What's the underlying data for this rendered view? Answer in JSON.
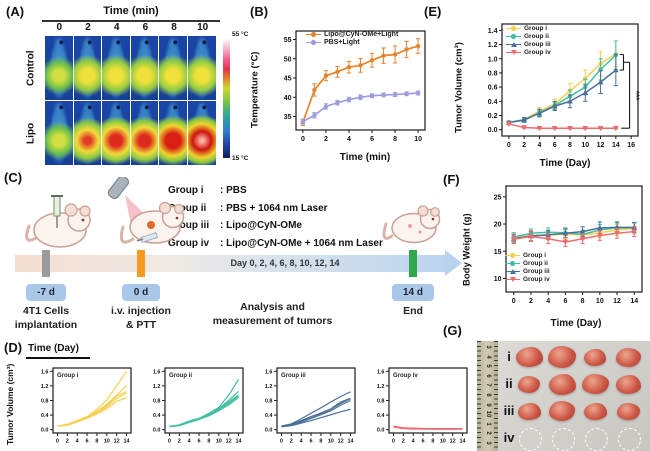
{
  "labels": {
    "a": "(A)",
    "b": "(B)",
    "c": "(C)",
    "d": "(D)",
    "e": "(E)",
    "f": "(F)",
    "g": "(G)"
  },
  "colors": {
    "group_i": "#F5D052",
    "group_ii": "#43BFA3",
    "group_iii": "#4C6F99",
    "group_iv": "#EC6D6F",
    "lipo_light": "#E8822C",
    "pbs_light": "#9C9CDE",
    "marker_implant": "#9b9b9b",
    "marker_injection": "#f59a23",
    "marker_end": "#2fa84f",
    "badge_bg": "#a9c8e9"
  },
  "panelA": {
    "title": "Time (min)",
    "times": [
      "0",
      "2",
      "4",
      "6",
      "8",
      "10"
    ],
    "rows": [
      "Control",
      "Lipo"
    ],
    "colorbar": {
      "top": "55 °C",
      "bottom": "15 °C"
    },
    "heat": {
      "m1": [
        [
          "#cfe040",
          14
        ],
        [
          "#6fc04c",
          30
        ],
        [
          "rgba(30,90,170,0)",
          46
        ]
      ],
      "m2": [
        [
          "#f0e03a",
          16
        ],
        [
          "#93cc42",
          34
        ],
        [
          "rgba(30,90,170,0)",
          50
        ]
      ],
      "r1": [
        [
          "#e23b26",
          8
        ],
        [
          "#f0dc3a",
          26
        ],
        [
          "#8cc944",
          42
        ],
        [
          "rgba(30,90,170,0)",
          56
        ]
      ],
      "r2": [
        [
          "#de2a1e",
          14
        ],
        [
          "#f0dc3a",
          32
        ],
        [
          "#8cc944",
          46
        ],
        [
          "rgba(30,90,170,0)",
          58
        ]
      ],
      "r3": [
        [
          "#d91e14",
          18
        ],
        [
          "#eed42e",
          36
        ],
        [
          "#88c641",
          48
        ],
        [
          "rgba(30,90,170,0)",
          60
        ]
      ],
      "r4": [
        [
          "#ffb09a",
          4
        ],
        [
          "#cd1410",
          22
        ],
        [
          "#eed42e",
          40
        ],
        [
          "#88c641",
          52
        ],
        [
          "rgba(30,90,170,0)",
          62
        ]
      ]
    },
    "grid": [
      [
        "m1",
        "m2",
        "m2",
        "m2",
        "m2",
        "m2"
      ],
      [
        "m1",
        "r1",
        "r2",
        "r2",
        "r3",
        "r4"
      ]
    ]
  },
  "panelB": {
    "ylabel": "Temperature (°C)",
    "xlabel": "Time (min)"
  },
  "panelC": {
    "groups": [
      {
        "name": "Group i",
        "desc": ": PBS"
      },
      {
        "name": "Group ii",
        "desc": ": PBS + 1064 nm Laser"
      },
      {
        "name": "Group iii",
        "desc": ": Lipo@CyN-OMe"
      },
      {
        "name": "Group iv",
        "desc": ": Lipo@CyN-OMe + 1064 nm Laser"
      }
    ],
    "day_text": "Day 0, 2, 4, 6, 8, 10, 12, 14",
    "badges": [
      {
        "text": "-7 d"
      },
      {
        "text": "0 d"
      },
      {
        "text": "14 d"
      }
    ],
    "captions": [
      {
        "line1": "4T1 Cells",
        "line2": "implantation"
      },
      {
        "line1": "i.v. injection",
        "line2": "& PTT"
      },
      {
        "line1": "Analysis and",
        "line2": "measurement of tumors"
      },
      {
        "line1": "End",
        "line2": ""
      }
    ]
  },
  "panelD": {
    "header": "Time (Day)",
    "ylabel": "Tumor Volume (cm³)"
  },
  "panelE": {
    "ylabel": "Tumor Volume (cm³)",
    "xlabel": "Time (Day)",
    "significance": "***"
  },
  "panelF": {
    "ylabel": "Body Weight (g)",
    "xlabel": "Time (Day)"
  },
  "panelG": {
    "ruler_numbers": [
      "3",
      "4",
      "5",
      "6",
      "7",
      "8",
      "9",
      "10",
      "1",
      "2",
      "3"
    ],
    "rows": [
      {
        "label": "i",
        "type": "tumor",
        "sizes": [
          [
            27,
            20
          ],
          [
            28,
            22
          ],
          [
            22,
            17
          ],
          [
            25,
            19
          ]
        ]
      },
      {
        "label": "ii",
        "type": "tumor",
        "sizes": [
          [
            22,
            17
          ],
          [
            27,
            21
          ],
          [
            27,
            20
          ],
          [
            25,
            19
          ]
        ]
      },
      {
        "label": "iii",
        "type": "tumor",
        "sizes": [
          [
            23,
            17
          ],
          [
            26,
            20
          ],
          [
            23,
            17
          ],
          [
            23,
            17
          ]
        ]
      },
      {
        "label": "iv",
        "type": "empty",
        "sizes": [
          [
            21,
            21
          ],
          [
            21,
            21
          ],
          [
            21,
            21
          ],
          [
            21,
            21
          ]
        ]
      }
    ]
  },
  "chart_data": [
    {
      "id": "b",
      "type": "line",
      "title": "",
      "xlabel": "Time (min)",
      "ylabel": "Temperature (°C)",
      "x": [
        0,
        1,
        2,
        3,
        4,
        5,
        6,
        7,
        8,
        9,
        10
      ],
      "xlim": [
        -0.6,
        10.6
      ],
      "ylim": [
        31.5,
        57.2
      ],
      "xticks": [
        0,
        2,
        4,
        6,
        8,
        10
      ],
      "yticks": [
        35,
        40,
        45,
        50,
        55
      ],
      "legend_position": "top-left",
      "series": [
        {
          "name": "Lipo@CyN-OMe+Light",
          "color": "#E8822C",
          "marker": "circle",
          "values": [
            33.5,
            41.9,
            45.6,
            46.6,
            47.8,
            48.3,
            49.6,
            50.8,
            51.1,
            52.4,
            53.3
          ],
          "err": [
            0.8,
            1.6,
            1.3,
            1.4,
            1.5,
            1.8,
            1.8,
            2.0,
            2.2,
            2.1,
            1.9
          ]
        },
        {
          "name": "PBS+Light",
          "color": "#9C9CDE",
          "marker": "circle",
          "values": [
            33.7,
            35.3,
            37.6,
            38.6,
            39.4,
            40.0,
            40.4,
            40.6,
            40.7,
            40.9,
            41.1
          ],
          "err": [
            0.6,
            0.7,
            0.7,
            0.6,
            0.6,
            0.6,
            0.5,
            0.5,
            0.5,
            0.5,
            0.5
          ]
        }
      ]
    },
    {
      "id": "e",
      "type": "line",
      "title": "",
      "xlabel": "Time (Day)",
      "ylabel": "Tumor Volume (cm³)",
      "x": [
        0,
        2,
        4,
        6,
        8,
        10,
        12,
        14
      ],
      "xlim": [
        -0.9,
        16.9
      ],
      "ylim": [
        -0.09,
        1.49
      ],
      "xticks": [
        0,
        2,
        4,
        6,
        8,
        10,
        12,
        14,
        16
      ],
      "yticks": [
        0.0,
        0.2,
        0.4,
        0.6,
        0.8,
        1.0,
        1.2,
        1.4
      ],
      "ydec": 1,
      "legend_position": "top-left",
      "series": [
        {
          "name": "Group i",
          "color": "#F5D052",
          "marker": "circle",
          "values": [
            0.1,
            0.14,
            0.26,
            0.36,
            0.55,
            0.72,
            0.93,
            1.07
          ],
          "err": [
            0.02,
            0.03,
            0.05,
            0.07,
            0.1,
            0.12,
            0.17,
            0.18
          ]
        },
        {
          "name": "Group ii",
          "color": "#43BFA3",
          "marker": "circle",
          "values": [
            0.1,
            0.13,
            0.24,
            0.34,
            0.47,
            0.6,
            0.85,
            1.05
          ],
          "err": [
            0.02,
            0.03,
            0.05,
            0.06,
            0.09,
            0.11,
            0.15,
            0.2
          ]
        },
        {
          "name": "Group iii",
          "color": "#4C6F99",
          "marker": "tri-up",
          "values": [
            0.1,
            0.14,
            0.23,
            0.33,
            0.4,
            0.52,
            0.67,
            0.84
          ],
          "err": [
            0.02,
            0.03,
            0.05,
            0.06,
            0.09,
            0.12,
            0.16,
            0.22
          ]
        },
        {
          "name": "Group iv",
          "color": "#EC6D6F",
          "marker": "tri-down",
          "values": [
            0.08,
            0.03,
            0.02,
            0.02,
            0.02,
            0.02,
            0.02,
            0.02
          ],
          "err": [
            0.01,
            0.01,
            0.01,
            0.01,
            0.01,
            0.01,
            0.01,
            0.01
          ]
        }
      ],
      "annotation": {
        "label": "***",
        "text_x": 16.3,
        "text_y": 0.48,
        "lines": [
          [
            14.5,
            1.06,
            15.0,
            1.06
          ],
          [
            14.5,
            0.84,
            15.0,
            0.84
          ],
          [
            15.0,
            1.06,
            15.0,
            0.84
          ],
          [
            15.0,
            0.95,
            15.8,
            0.95
          ],
          [
            15.8,
            0.95,
            15.8,
            0.02
          ],
          [
            15.8,
            0.02,
            14.7,
            0.02
          ]
        ]
      }
    },
    {
      "id": "f",
      "type": "line",
      "title": "",
      "xlabel": "Time (Day)",
      "ylabel": "Body Weight (g)",
      "x": [
        0,
        2,
        4,
        6,
        8,
        10,
        12,
        14
      ],
      "xlim": [
        -0.9,
        14.9
      ],
      "ylim": [
        7.5,
        27
      ],
      "xticks": [
        0,
        2,
        4,
        6,
        8,
        10,
        12,
        14
      ],
      "yticks": [
        10,
        15,
        20,
        25
      ],
      "legend_position": "bottom-left",
      "series": [
        {
          "name": "Group i",
          "color": "#F5D052",
          "marker": "circle",
          "values": [
            17.5,
            17.9,
            18.0,
            18.1,
            18.0,
            18.4,
            18.9,
            19.2
          ],
          "err": [
            0.9,
            0.9,
            0.9,
            0.9,
            0.8,
            0.9,
            1.0,
            1.0
          ]
        },
        {
          "name": "Group ii",
          "color": "#43BFA3",
          "marker": "circle",
          "values": [
            17.6,
            18.3,
            18.5,
            18.4,
            18.1,
            18.9,
            19.3,
            19.3
          ],
          "err": [
            0.8,
            0.8,
            0.8,
            0.9,
            0.8,
            1.0,
            0.9,
            0.9
          ]
        },
        {
          "name": "Group iii",
          "color": "#4C6F99",
          "marker": "tri-up",
          "values": [
            17.3,
            17.8,
            18.0,
            18.3,
            18.6,
            19.3,
            19.4,
            19.4
          ],
          "err": [
            0.8,
            0.9,
            0.8,
            0.8,
            0.9,
            1.1,
            1.0,
            0.9
          ]
        },
        {
          "name": "Group iv",
          "color": "#EC6D6F",
          "marker": "tri-down",
          "values": [
            17.2,
            17.7,
            17.3,
            16.7,
            17.3,
            17.9,
            18.3,
            18.6
          ],
          "err": [
            0.8,
            0.9,
            0.9,
            0.8,
            0.9,
            0.9,
            0.9,
            0.9
          ]
        }
      ]
    },
    {
      "id": "d1",
      "type": "line",
      "title": "Group i",
      "xlabel": "Time (Day)",
      "ylabel": "Tumor Volume (cm³)",
      "x": [
        0,
        2,
        4,
        6,
        8,
        10,
        12,
        14
      ],
      "xlim": [
        -0.9,
        14.9
      ],
      "ylim": [
        -0.09,
        1.69
      ],
      "xticks": [
        0,
        2,
        4,
        6,
        8,
        10,
        12,
        14
      ],
      "yticks": [
        0.0,
        0.4,
        0.8,
        1.2,
        1.6
      ],
      "ydec": 1,
      "color": "#F5D052",
      "series": [
        {
          "values": [
            0.1,
            0.15,
            0.25,
            0.36,
            0.55,
            0.82,
            1.2,
            1.6
          ]
        },
        {
          "values": [
            0.1,
            0.14,
            0.24,
            0.35,
            0.5,
            0.7,
            0.95,
            1.21
          ]
        },
        {
          "values": [
            0.1,
            0.13,
            0.23,
            0.34,
            0.48,
            0.66,
            0.92,
            1.05
          ]
        },
        {
          "values": [
            0.1,
            0.13,
            0.22,
            0.33,
            0.46,
            0.62,
            0.86,
            1.0
          ]
        },
        {
          "values": [
            0.1,
            0.12,
            0.21,
            0.31,
            0.43,
            0.57,
            0.78,
            0.87
          ]
        }
      ]
    },
    {
      "id": "d2",
      "type": "line",
      "title": "Group ii",
      "xlabel": "Time (Day)",
      "ylabel": "Tumor Volume (cm³)",
      "x": [
        0,
        2,
        4,
        6,
        8,
        10,
        12,
        14
      ],
      "xlim": [
        -0.9,
        14.9
      ],
      "ylim": [
        -0.09,
        1.69
      ],
      "xticks": [
        0,
        2,
        4,
        6,
        8,
        10,
        12,
        14
      ],
      "yticks": [
        0.0,
        0.4,
        0.8,
        1.2,
        1.6
      ],
      "ydec": 1,
      "color": "#43BFA3",
      "series": [
        {
          "values": [
            0.09,
            0.13,
            0.24,
            0.31,
            0.45,
            0.61,
            0.95,
            1.38
          ]
        },
        {
          "values": [
            0.09,
            0.13,
            0.23,
            0.3,
            0.43,
            0.58,
            0.8,
            1.05
          ]
        },
        {
          "values": [
            0.09,
            0.12,
            0.22,
            0.3,
            0.41,
            0.56,
            0.76,
            0.95
          ]
        },
        {
          "values": [
            0.09,
            0.12,
            0.21,
            0.29,
            0.4,
            0.55,
            0.72,
            0.92
          ]
        },
        {
          "values": [
            0.08,
            0.11,
            0.2,
            0.28,
            0.38,
            0.52,
            0.68,
            0.88
          ]
        }
      ]
    },
    {
      "id": "d3",
      "type": "line",
      "title": "Group iii",
      "xlabel": "Time (Day)",
      "ylabel": "Tumor Volume (cm³)",
      "x": [
        0,
        2,
        4,
        6,
        8,
        10,
        12,
        14
      ],
      "xlim": [
        -0.9,
        14.9
      ],
      "ylim": [
        -0.09,
        1.69
      ],
      "xticks": [
        0,
        2,
        4,
        6,
        8,
        10,
        12,
        14
      ],
      "yticks": [
        0.0,
        0.4,
        0.8,
        1.2,
        1.6
      ],
      "ydec": 1,
      "color": "#4C6F99",
      "series": [
        {
          "values": [
            0.1,
            0.16,
            0.3,
            0.45,
            0.6,
            0.76,
            0.91,
            1.04
          ]
        },
        {
          "values": [
            0.1,
            0.14,
            0.25,
            0.36,
            0.46,
            0.57,
            0.76,
            0.86
          ]
        },
        {
          "values": [
            0.09,
            0.13,
            0.23,
            0.32,
            0.43,
            0.56,
            0.72,
            0.85
          ]
        },
        {
          "values": [
            0.09,
            0.12,
            0.21,
            0.31,
            0.41,
            0.52,
            0.67,
            0.8
          ]
        },
        {
          "values": [
            0.08,
            0.11,
            0.18,
            0.25,
            0.33,
            0.41,
            0.49,
            0.56
          ]
        }
      ]
    },
    {
      "id": "d4",
      "type": "line",
      "title": "Group iv",
      "xlabel": "Time (Day)",
      "ylabel": "Tumor Volume (cm³)",
      "x": [
        0,
        2,
        4,
        6,
        8,
        10,
        12,
        14
      ],
      "xlim": [
        -0.9,
        14.9
      ],
      "ylim": [
        -0.09,
        1.69
      ],
      "xticks": [
        0,
        2,
        4,
        6,
        8,
        10,
        12,
        14
      ],
      "yticks": [
        0.0,
        0.4,
        0.8,
        1.2,
        1.6
      ],
      "ydec": 1,
      "color": "#EC6D6F",
      "series": [
        {
          "values": [
            0.1,
            0.05,
            0.04,
            0.03,
            0.03,
            0.03,
            0.03,
            0.03
          ]
        },
        {
          "values": [
            0.09,
            0.05,
            0.04,
            0.03,
            0.02,
            0.02,
            0.02,
            0.03
          ]
        },
        {
          "values": [
            0.08,
            0.04,
            0.03,
            0.03,
            0.02,
            0.02,
            0.02,
            0.02
          ]
        },
        {
          "values": [
            0.08,
            0.04,
            0.03,
            0.02,
            0.02,
            0.02,
            0.02,
            0.02
          ]
        },
        {
          "values": [
            0.07,
            0.03,
            0.02,
            0.02,
            0.02,
            0.02,
            0.02,
            0.02
          ]
        }
      ]
    }
  ]
}
